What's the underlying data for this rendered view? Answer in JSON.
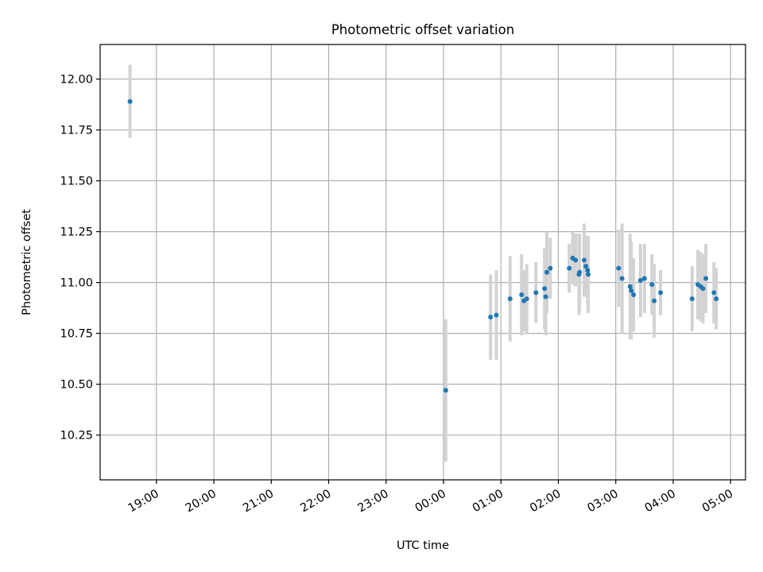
{
  "chart_data": {
    "type": "scatter",
    "title": "Photometric offset variation",
    "xlabel": "UTC time",
    "ylabel": "Photometric offset",
    "grid": true,
    "x_unit": "UTC time, hours past 00:00 (previous-day times negative)",
    "xlim": [
      -5.98,
      5.26
    ],
    "ylim": [
      10.03,
      12.17
    ],
    "x_ticks": [
      {
        "value": -5,
        "label": "19:00"
      },
      {
        "value": -4,
        "label": "20:00"
      },
      {
        "value": -3,
        "label": "21:00"
      },
      {
        "value": -2,
        "label": "22:00"
      },
      {
        "value": -1,
        "label": "23:00"
      },
      {
        "value": 0,
        "label": "00:00"
      },
      {
        "value": 1,
        "label": "01:00"
      },
      {
        "value": 2,
        "label": "02:00"
      },
      {
        "value": 3,
        "label": "03:00"
      },
      {
        "value": 4,
        "label": "04:00"
      },
      {
        "value": 5,
        "label": "05:00"
      }
    ],
    "y_ticks": [
      {
        "value": 10.25,
        "label": "10.25"
      },
      {
        "value": 10.5,
        "label": "10.50"
      },
      {
        "value": 10.75,
        "label": "10.75"
      },
      {
        "value": 11.0,
        "label": "11.00"
      },
      {
        "value": 11.25,
        "label": "11.25"
      },
      {
        "value": 11.5,
        "label": "11.50"
      },
      {
        "value": 11.75,
        "label": "11.75"
      },
      {
        "value": 12.0,
        "label": "12.00"
      }
    ],
    "colors": {
      "point": "#1f77b4",
      "errorbar": "#d3d3d3",
      "grid": "#b0b0b0"
    },
    "series": [
      {
        "points": [
          {
            "x": -5.46,
            "y": 11.89,
            "err": 0.18
          },
          {
            "x": 0.04,
            "y": 10.47,
            "err": 0.35
          },
          {
            "x": 0.82,
            "y": 10.83,
            "err": 0.21
          },
          {
            "x": 0.92,
            "y": 10.84,
            "err": 0.22
          },
          {
            "x": 1.16,
            "y": 10.92,
            "err": 0.21
          },
          {
            "x": 1.36,
            "y": 10.94,
            "err": 0.2
          },
          {
            "x": 1.4,
            "y": 10.91,
            "err": 0.15
          },
          {
            "x": 1.45,
            "y": 10.92,
            "err": 0.17
          },
          {
            "x": 1.61,
            "y": 10.95,
            "err": 0.15
          },
          {
            "x": 1.76,
            "y": 10.97,
            "err": 0.2
          },
          {
            "x": 1.78,
            "y": 10.93,
            "err": 0.19
          },
          {
            "x": 1.8,
            "y": 11.05,
            "err": 0.2
          },
          {
            "x": 1.86,
            "y": 11.07,
            "err": 0.15
          },
          {
            "x": 2.19,
            "y": 11.07,
            "err": 0.12
          },
          {
            "x": 2.25,
            "y": 11.12,
            "err": 0.13
          },
          {
            "x": 2.3,
            "y": 11.11,
            "err": 0.13
          },
          {
            "x": 2.36,
            "y": 11.04,
            "err": 0.2
          },
          {
            "x": 2.37,
            "y": 11.05,
            "err": 0.19
          },
          {
            "x": 2.45,
            "y": 11.11,
            "err": 0.18
          },
          {
            "x": 2.48,
            "y": 11.08,
            "err": 0.15
          },
          {
            "x": 2.51,
            "y": 11.06,
            "err": 0.17
          },
          {
            "x": 2.52,
            "y": 11.04,
            "err": 0.19
          },
          {
            "x": 3.05,
            "y": 11.07,
            "err": 0.19
          },
          {
            "x": 3.11,
            "y": 11.02,
            "err": 0.27
          },
          {
            "x": 3.25,
            "y": 10.98,
            "err": 0.26
          },
          {
            "x": 3.27,
            "y": 10.96,
            "err": 0.24
          },
          {
            "x": 3.31,
            "y": 10.94,
            "err": 0.18
          },
          {
            "x": 3.43,
            "y": 11.01,
            "err": 0.18
          },
          {
            "x": 3.5,
            "y": 11.02,
            "err": 0.17
          },
          {
            "x": 3.63,
            "y": 10.99,
            "err": 0.15
          },
          {
            "x": 3.67,
            "y": 10.91,
            "err": 0.18
          },
          {
            "x": 3.78,
            "y": 10.95,
            "err": 0.11
          },
          {
            "x": 4.33,
            "y": 10.92,
            "err": 0.16
          },
          {
            "x": 4.43,
            "y": 10.99,
            "err": 0.17
          },
          {
            "x": 4.48,
            "y": 10.98,
            "err": 0.17
          },
          {
            "x": 4.52,
            "y": 10.97,
            "err": 0.17
          },
          {
            "x": 4.57,
            "y": 11.02,
            "err": 0.17
          },
          {
            "x": 4.71,
            "y": 10.95,
            "err": 0.15
          },
          {
            "x": 4.75,
            "y": 10.92,
            "err": 0.15
          }
        ]
      }
    ]
  }
}
